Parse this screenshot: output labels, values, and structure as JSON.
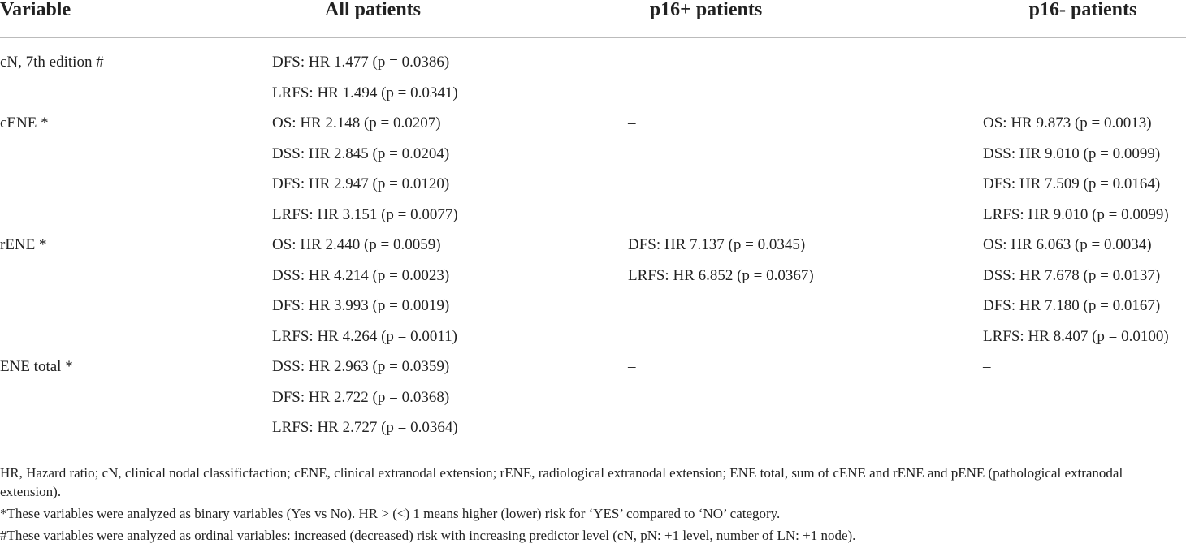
{
  "table": {
    "header": [
      "Variable",
      "All patients",
      "p16+ patients",
      "p16- patients"
    ],
    "rows": [
      {
        "variable": "cN, 7th edition #",
        "all": [
          "DFS: HR 1.477 (p = 0.0386)",
          "LRFS: HR 1.494 (p = 0.0341)"
        ],
        "p16_pos": [
          "–"
        ],
        "p16_neg": [
          "–"
        ]
      },
      {
        "variable": "cENE *",
        "all": [
          "OS: HR 2.148 (p = 0.0207)",
          "DSS: HR 2.845 (p = 0.0204)",
          "DFS: HR 2.947 (p = 0.0120)",
          "LRFS: HR 3.151 (p = 0.0077)"
        ],
        "p16_pos": [
          "–"
        ],
        "p16_neg": [
          "OS: HR 9.873 (p = 0.0013)",
          "DSS: HR 9.010 (p = 0.0099)",
          "DFS: HR 7.509 (p = 0.0164)",
          "LRFS: HR 9.010 (p = 0.0099)"
        ]
      },
      {
        "variable": "rENE *",
        "all": [
          "OS: HR 2.440 (p = 0.0059)",
          "DSS: HR 4.214 (p = 0.0023)",
          "DFS: HR 3.993 (p = 0.0019)",
          "LRFS: HR 4.264 (p = 0.0011)"
        ],
        "p16_pos": [
          "DFS: HR 7.137 (p = 0.0345)",
          "LRFS: HR 6.852 (p = 0.0367)"
        ],
        "p16_neg": [
          "OS: HR 6.063 (p = 0.0034)",
          "DSS: HR 7.678 (p = 0.0137)",
          "DFS: HR 7.180 (p = 0.0167)",
          "LRFS: HR 8.407 (p = 0.0100)"
        ]
      },
      {
        "variable": "ENE total *",
        "all": [
          "DSS: HR 2.963 (p = 0.0359)",
          "DFS: HR 2.722 (p = 0.0368)",
          "LRFS: HR 2.727 (p = 0.0364)"
        ],
        "p16_pos": [
          "–"
        ],
        "p16_neg": [
          "–"
        ]
      }
    ]
  },
  "notes": [
    "HR, Hazard ratio; cN, clinical nodal classificfaction; cENE, clinical extranodal extension; rENE, radiological extranodal extension; ENE total, sum of cENE and rENE and pENE (pathological extranodal extension).",
    "*These variables were analyzed as binary variables (Yes vs No). HR > (<) 1 means higher (lower) risk for ‘YES’ compared to ‘NO’ category.",
    "#These variables were analyzed as ordinal variables: increased (decreased) risk with increasing predictor level (cN, pN: +1 level, number of LN: +1 node)."
  ]
}
